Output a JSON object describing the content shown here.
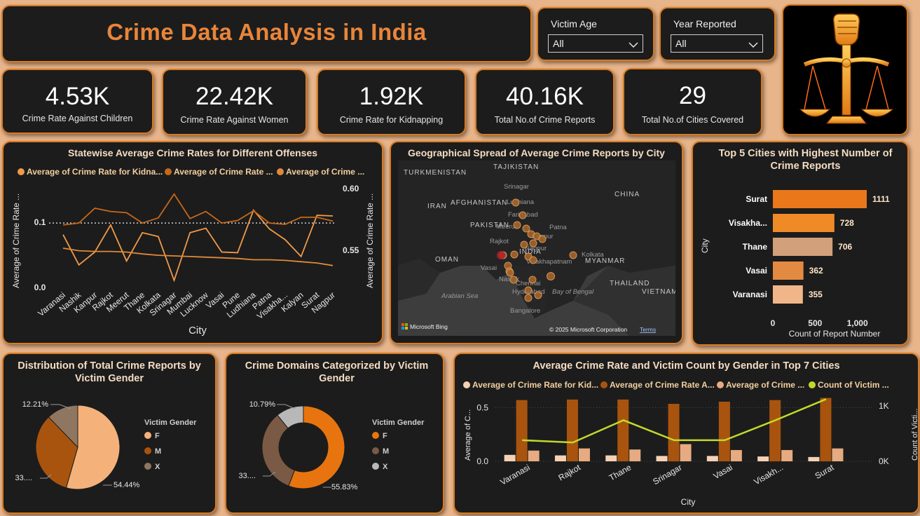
{
  "header": {
    "title": "Crime Data Analysis in India"
  },
  "slicers": [
    {
      "label": "Victim Age",
      "value": "All"
    },
    {
      "label": "Year Reported",
      "value": "All"
    }
  ],
  "kpis": [
    {
      "value": "4.53K",
      "label": "Crime Rate Against Children"
    },
    {
      "value": "22.42K",
      "label": "Crime Rate Against Women"
    },
    {
      "value": "1.92K",
      "label": "Crime Rate for Kidnapping"
    },
    {
      "value": "40.16K",
      "label": "Total No.of Crime Reports"
    },
    {
      "value": "29",
      "label": "Total No.of Cities Covered"
    }
  ],
  "logo": {
    "icon": "scales-of-justice-fist-icon"
  },
  "colors": {
    "accent": "#d97a1e",
    "dark": "#1c1c1c",
    "page": "#e8b48a",
    "title": "#e8853a"
  },
  "chart_data": [
    {
      "id": "statewise",
      "type": "line",
      "title": "Statewise Average Crime Rates for Different Offenses",
      "xlabel": "City",
      "ylabel": "Average of Crime Rate ...",
      "ylabel_right": "Average of Crime Rate ...",
      "categories": [
        "Varanasi",
        "Nashik",
        "Kanpur",
        "Rajkot",
        "Meerut",
        "Thane",
        "Kolkata",
        "Srinagar",
        "Mumbai",
        "Lucknow",
        "Vasai",
        "Pune",
        "Ludhiana",
        "Patna",
        "Visakha...",
        "Kalyan",
        "Surat",
        "Nagpur"
      ],
      "left_ticks": [
        "0.1",
        "0.0"
      ],
      "right_ticks": [
        "0.60",
        "0.55"
      ],
      "legend": [
        "Average of Crime Rate for Kidna...",
        "Average of Crime Rate ...",
        "Average of Crime ..."
      ],
      "series": [
        {
          "name": "Average of Crime Rate for Kidna...",
          "color": "#f09a48",
          "axis": "left",
          "values": [
            0.082,
            0.035,
            0.055,
            0.097,
            0.041,
            0.085,
            0.079,
            0.011,
            0.085,
            0.092,
            0.055,
            0.054,
            0.12,
            0.091,
            0.074,
            0.048,
            0.112,
            0.111
          ]
        },
        {
          "name": "Average of Crime Rate ...",
          "color": "#c7681a",
          "axis": "left",
          "values": [
            0.097,
            0.1,
            0.123,
            0.118,
            0.116,
            0.1,
            0.108,
            0.145,
            0.107,
            0.118,
            0.1,
            0.104,
            0.119,
            0.1,
            0.098,
            0.109,
            0.109,
            0.103
          ]
        },
        {
          "name": "Average of Crime ...",
          "color": "#e0893a",
          "axis": "left",
          "values": [
            0.061,
            0.057,
            0.056,
            0.056,
            0.055,
            0.052,
            0.05,
            0.049,
            0.048,
            0.047,
            0.046,
            0.045,
            0.043,
            0.043,
            0.042,
            0.04,
            0.038,
            0.034
          ]
        }
      ]
    },
    {
      "id": "top5",
      "type": "bar",
      "title": "Top 5 Cities with Highest Number of Crime Reports",
      "xlabel": "Count of Report Number",
      "ylabel": "City",
      "xlim": [
        0,
        1111
      ],
      "x_ticks": [
        "0",
        "500",
        "1,000"
      ],
      "categories": [
        "Surat",
        "Visakha...",
        "Thane",
        "Vasai",
        "Varanasi"
      ],
      "values": [
        1111,
        728,
        706,
        362,
        355
      ],
      "colors": [
        "#e8781a",
        "#ef8a26",
        "#d2a07a",
        "#e38a42",
        "#f0b68a"
      ]
    },
    {
      "id": "gender-pie",
      "type": "pie",
      "title": "Distribution of Total Crime Reports by Victim Gender",
      "legend_title": "Victim Gender",
      "categories": [
        "F",
        "M",
        "X"
      ],
      "values": [
        54.44,
        33.35,
        12.21
      ],
      "labels": [
        "54.44%",
        "33....",
        "12.21%"
      ],
      "colors": [
        "#f4b27a",
        "#a8540e",
        "#8f7660"
      ]
    },
    {
      "id": "domain-donut",
      "type": "pie",
      "title": "Crime Domains Categorized by Victim Gender",
      "legend_title": "Victim Gender",
      "categories": [
        "F",
        "M",
        "X"
      ],
      "values": [
        55.83,
        33.38,
        10.79
      ],
      "labels": [
        "55.83%",
        "33....",
        "10.79%"
      ],
      "colors": [
        "#e8740f",
        "#7a5a44",
        "#b8b8b8"
      ]
    },
    {
      "id": "gender-combo",
      "type": "bar",
      "title": "Average Crime Rate and Victim Count by Gender in Top 7 Cities",
      "xlabel": "City",
      "ylabel": "Average of C...",
      "ylabel_right": "Count of Victi...",
      "categories": [
        "Varanasi",
        "Rajkot",
        "Thane",
        "Srinagar",
        "Vasai",
        "Visakh...",
        "Surat"
      ],
      "left_ticks": [
        "0.5",
        "0.0"
      ],
      "right_ticks": [
        "1K",
        "0K"
      ],
      "ylim": [
        0,
        0.62
      ],
      "y2lim": [
        0,
        1200
      ],
      "legend": [
        "Average of Crime Rate for Kid...",
        "Average of Crime Rate A...",
        "Average of Crime ...",
        "Count of Victim ..."
      ],
      "series": [
        {
          "name": "Average of Crime Rate for Kid...",
          "color": "#f5d2b5",
          "values": [
            0.06,
            0.055,
            0.055,
            0.05,
            0.05,
            0.045,
            0.04
          ]
        },
        {
          "name": "Average of Crime Rate A...",
          "color": "#a8540e",
          "values": [
            0.57,
            0.575,
            0.575,
            0.535,
            0.555,
            0.57,
            0.59
          ]
        },
        {
          "name": "Average of Crime ...",
          "color": "#e6ab80",
          "values": [
            0.1,
            0.12,
            0.11,
            0.16,
            0.105,
            0.105,
            0.12
          ]
        },
        {
          "name": "Count of Victim ...",
          "color": "#c3d92a",
          "type": "line",
          "axis": "right",
          "values": [
            380,
            340,
            740,
            380,
            380,
            740,
            1120
          ]
        }
      ]
    }
  ],
  "map": {
    "title": "Geographical Spread of Average Crime Reports by City",
    "labels": [
      "TURKMENISTAN",
      "TAJIKISTAN",
      "IRAN",
      "AFGHANISTAN",
      "PAKISTAN",
      "CHINA",
      "OMAN",
      "INDIA",
      "MYANMAR",
      "THAILAND",
      "VIETNAM",
      "Arabian Sea",
      "Bay of Bengal",
      "Srinagar",
      "Ludhiana",
      "Faridabad",
      "Meerut",
      "Patna",
      "Kanpur",
      "Rajkot",
      "Nagpur",
      "Kolkata",
      "Visakhapatnam",
      "Vasai",
      "Nashik",
      "Chennai",
      "Hyderabad",
      "Bangalore"
    ],
    "bing": "Microsoft Bing",
    "copyright": "© 2025 Microsoft Corporation",
    "terms": "Terms"
  }
}
